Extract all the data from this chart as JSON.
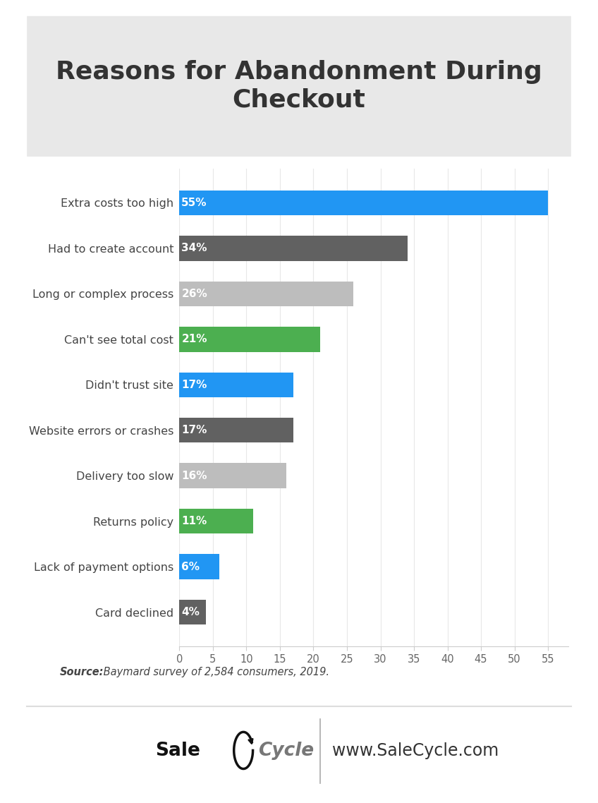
{
  "title": "Reasons for Abandonment During\nCheckout",
  "categories": [
    "Extra costs too high",
    "Had to create account",
    "Long or complex process",
    "Can't see total cost",
    "Didn't trust site",
    "Website errors or crashes",
    "Delivery too slow",
    "Returns policy",
    "Lack of payment options",
    "Card declined"
  ],
  "values": [
    55,
    34,
    26,
    21,
    17,
    17,
    16,
    11,
    6,
    4
  ],
  "labels": [
    "55%",
    "34%",
    "26%",
    "21%",
    "17%",
    "17%",
    "16%",
    "11%",
    "6%",
    "4%"
  ],
  "colors": [
    "#2196F3",
    "#616161",
    "#BDBDBD",
    "#4CAF50",
    "#2196F3",
    "#616161",
    "#BDBDBD",
    "#4CAF50",
    "#2196F3",
    "#616161"
  ],
  "xlim": [
    0,
    58
  ],
  "xticks": [
    0,
    5,
    10,
    15,
    20,
    25,
    30,
    35,
    40,
    45,
    50,
    55
  ],
  "title_fontsize": 26,
  "label_fontsize": 11.5,
  "bar_label_fontsize": 11,
  "tick_fontsize": 10.5,
  "title_bg_color": "#E8E8E8",
  "main_bg_color": "#FFFFFF",
  "source_text_bold": "Source:",
  "source_text_italic": " Baymard survey of 2,584 consumers, 2019.",
  "footer_url_text": "www.SaleCycle.com",
  "bar_height": 0.55
}
